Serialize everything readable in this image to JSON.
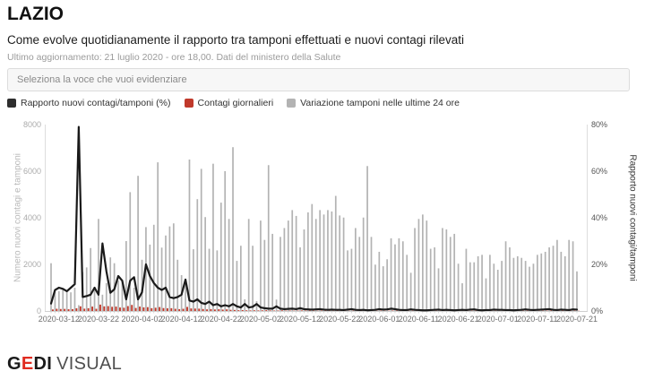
{
  "header": {
    "title": "LAZIO",
    "subtitle": "Come evolve quotidianamente il rapporto tra tamponi effettuati e nuovi contagi rilevati",
    "update_info": "Ultimo aggiornamento: 21 luglio 2020 - ore 18,00. Dati del ministero della Salute"
  },
  "controls": {
    "select_placeholder": "Seleziona la voce che vuoi evidenziare"
  },
  "legend": [
    {
      "label": "Rapporto nuovi contagi/tamponi (%)",
      "color": "#2e2e2e"
    },
    {
      "label": "Contagi giornalieri",
      "color": "#c0392b"
    },
    {
      "label": "Variazione tamponi nelle ultime 24 ore",
      "color": "#b3b3b3"
    }
  ],
  "footer": {
    "brand_g": "G",
    "brand_e": "E",
    "brand_di": "DI",
    "brand_visual": "VISUAL"
  },
  "colors": {
    "ratio_line": "#1a1a1a",
    "cases_bar": "#c0392b",
    "tests_bar": "#b3b3b3",
    "axis_line": "#dddddd",
    "baseline": "#cfcfcf",
    "day_tick": "#cccccc"
  },
  "chart_data": {
    "type": "bar",
    "subtype": "combo-dual-axis",
    "title": "LAZIO - rapporto tamponi / nuovi contagi",
    "xlabel": "",
    "ylabel_left": "Numero nuovi contagi e tamponi",
    "ylabel_right": "Rapporto nuovi contagi/tamponi",
    "ylim_left": [
      0,
      8000
    ],
    "ylim_right_percent": [
      0,
      80
    ],
    "yticks_left": [
      0,
      2000,
      4000,
      6000,
      8000
    ],
    "yticks_right_labels": [
      "0%",
      "20%",
      "40%",
      "60%",
      "80%"
    ],
    "grid": false,
    "legend_position": "top",
    "x_tick_indices": [
      2,
      12,
      23,
      33,
      43,
      53,
      63,
      73,
      83,
      93,
      103,
      113,
      123,
      133
    ],
    "x": [
      "2020-03-10",
      "2020-03-11",
      "2020-03-12",
      "2020-03-13",
      "2020-03-14",
      "2020-03-15",
      "2020-03-16",
      "2020-03-17",
      "2020-03-18",
      "2020-03-19",
      "2020-03-20",
      "2020-03-21",
      "2020-03-22",
      "2020-03-23",
      "2020-03-24",
      "2020-03-25",
      "2020-03-26",
      "2020-03-27",
      "2020-03-28",
      "2020-03-29",
      "2020-03-30",
      "2020-03-31",
      "2020-04-01",
      "2020-04-02",
      "2020-04-03",
      "2020-04-04",
      "2020-04-05",
      "2020-04-06",
      "2020-04-07",
      "2020-04-08",
      "2020-04-09",
      "2020-04-10",
      "2020-04-11",
      "2020-04-12",
      "2020-04-13",
      "2020-04-14",
      "2020-04-15",
      "2020-04-16",
      "2020-04-17",
      "2020-04-18",
      "2020-04-19",
      "2020-04-20",
      "2020-04-21",
      "2020-04-22",
      "2020-04-23",
      "2020-04-24",
      "2020-04-25",
      "2020-04-26",
      "2020-04-27",
      "2020-04-28",
      "2020-04-29",
      "2020-04-30",
      "2020-05-01",
      "2020-05-02",
      "2020-05-03",
      "2020-05-04",
      "2020-05-05",
      "2020-05-06",
      "2020-05-07",
      "2020-05-08",
      "2020-05-09",
      "2020-05-10",
      "2020-05-11",
      "2020-05-12",
      "2020-05-13",
      "2020-05-14",
      "2020-05-15",
      "2020-05-16",
      "2020-05-17",
      "2020-05-18",
      "2020-05-19",
      "2020-05-20",
      "2020-05-21",
      "2020-05-22",
      "2020-05-23",
      "2020-05-24",
      "2020-05-25",
      "2020-05-26",
      "2020-05-27",
      "2020-05-28",
      "2020-05-29",
      "2020-05-30",
      "2020-05-31",
      "2020-06-01",
      "2020-06-02",
      "2020-06-03",
      "2020-06-04",
      "2020-06-05",
      "2020-06-06",
      "2020-06-07",
      "2020-06-08",
      "2020-06-09",
      "2020-06-10",
      "2020-06-11",
      "2020-06-12",
      "2020-06-13",
      "2020-06-14",
      "2020-06-15",
      "2020-06-16",
      "2020-06-17",
      "2020-06-18",
      "2020-06-19",
      "2020-06-20",
      "2020-06-21",
      "2020-06-22",
      "2020-06-23",
      "2020-06-24",
      "2020-06-25",
      "2020-06-26",
      "2020-06-27",
      "2020-06-28",
      "2020-06-29",
      "2020-06-30",
      "2020-07-01",
      "2020-07-02",
      "2020-07-03",
      "2020-07-04",
      "2020-07-05",
      "2020-07-06",
      "2020-07-07",
      "2020-07-08",
      "2020-07-09",
      "2020-07-10",
      "2020-07-11",
      "2020-07-12",
      "2020-07-13",
      "2020-07-14",
      "2020-07-15",
      "2020-07-16",
      "2020-07-17",
      "2020-07-18",
      "2020-07-19",
      "2020-07-20",
      "2020-07-21"
    ],
    "series": [
      {
        "name": "Variazione tamponi nelle ultime 24 ore",
        "type": "bar",
        "axis": "left",
        "values": [
          2050,
          900,
          850,
          950,
          900,
          800,
          1000,
          250,
          1670,
          1870,
          2700,
          950,
          3950,
          700,
          1200,
          2300,
          2050,
          1300,
          1350,
          3000,
          5100,
          1000,
          5800,
          2200,
          3600,
          2850,
          3700,
          6380,
          2720,
          3240,
          3630,
          3760,
          2200,
          1540,
          1350,
          6500,
          2650,
          4800,
          6100,
          4030,
          2670,
          6320,
          2600,
          4650,
          6000,
          3950,
          7030,
          2150,
          2800,
          500,
          3950,
          2800,
          420,
          3880,
          3050,
          6260,
          3310,
          490,
          3180,
          3560,
          3880,
          4330,
          4080,
          2730,
          3500,
          4230,
          4590,
          3950,
          4330,
          4140,
          4330,
          4270,
          4940,
          4100,
          4010,
          2600,
          2670,
          3560,
          3180,
          4010,
          6220,
          3180,
          1990,
          2540,
          1920,
          2220,
          3120,
          2860,
          3120,
          2990,
          2410,
          1640,
          3560,
          3950,
          4140,
          3880,
          2670,
          2730,
          1830,
          3560,
          3500,
          3180,
          3310,
          2030,
          1190,
          2670,
          2090,
          2090,
          2350,
          2410,
          1400,
          2410,
          2030,
          1770,
          2150,
          2990,
          2730,
          2280,
          2350,
          2280,
          2150,
          1900,
          2030,
          2410,
          2470,
          2540,
          2730,
          2800,
          3050,
          2540,
          2350,
          3050,
          2990,
          1700
        ]
      },
      {
        "name": "Contagi giornalieri",
        "type": "bar",
        "axis": "left",
        "values": [
          65,
          95,
          85,
          90,
          75,
          80,
          115,
          200,
          100,
          120,
          190,
          95,
          275,
          200,
          210,
          180,
          190,
          150,
          140,
          210,
          260,
          130,
          190,
          155,
          165,
          120,
          140,
          170,
          125,
          115,
          120,
          95,
          80,
          95,
          175,
          110,
          105,
          100,
          85,
          70,
          80,
          65,
          75,
          60,
          70,
          50,
          45,
          35,
          40,
          30,
          25,
          30,
          25,
          30,
          35,
          25,
          20,
          22,
          28,
          18,
          20,
          15,
          18,
          25,
          20,
          18,
          15,
          12,
          16,
          14,
          12,
          10,
          15,
          12,
          10,
          8,
          12,
          10,
          14,
          12,
          9,
          10,
          8,
          15,
          10,
          12,
          20,
          16,
          12,
          10,
          8,
          10,
          12,
          14,
          10,
          8,
          6,
          10,
          8,
          12,
          14,
          10,
          8,
          6,
          5,
          8,
          10,
          12,
          8,
          6,
          5,
          8,
          10,
          8,
          10,
          12,
          9,
          7,
          8,
          10,
          12,
          9,
          8,
          10,
          12,
          14,
          16,
          12,
          10,
          14,
          12,
          10,
          12,
          10
        ]
      },
      {
        "name": "Rapporto nuovi contagi/tamponi (%)",
        "type": "line",
        "axis": "right",
        "unit": "%",
        "values": [
          3.2,
          9,
          10,
          9.5,
          8.5,
          10,
          11.5,
          79,
          6,
          6.4,
          7,
          10,
          7,
          29,
          17,
          7.8,
          9.3,
          15,
          13,
          5,
          13,
          14.5,
          5,
          8,
          20,
          15,
          12,
          10,
          9,
          10,
          6,
          5.5,
          6,
          7,
          13.5,
          4.5,
          4,
          5,
          3.5,
          3,
          4,
          2.5,
          3,
          2,
          2.5,
          2,
          3,
          2,
          1.5,
          3,
          1.5,
          1.8,
          3,
          1.5,
          1.2,
          1,
          1,
          2,
          1,
          0.8,
          0.9,
          1,
          0.8,
          1.2,
          0.8,
          0.7,
          0.6,
          0.7,
          0.8,
          0.6,
          0.5,
          0.6,
          0.5,
          0.5,
          0.4,
          0.6,
          0.8,
          0.5,
          0.4,
          0.5,
          0.3,
          0.4,
          0.5,
          0.8,
          0.6,
          0.7,
          1,
          0.8,
          0.5,
          0.4,
          0.4,
          0.7,
          0.5,
          0.4,
          0.3,
          0.3,
          0.4,
          0.5,
          0.6,
          0.4,
          0.5,
          0.4,
          0.3,
          0.4,
          0.5,
          0.4,
          0.6,
          0.7,
          0.4,
          0.3,
          0.4,
          0.4,
          0.6,
          0.5,
          0.5,
          0.4,
          0.4,
          0.3,
          0.4,
          0.5,
          0.7,
          0.5,
          0.4,
          0.5,
          0.6,
          0.7,
          0.8,
          0.5,
          0.4,
          0.6,
          0.5,
          0.4,
          0.7,
          0.6
        ]
      }
    ]
  }
}
